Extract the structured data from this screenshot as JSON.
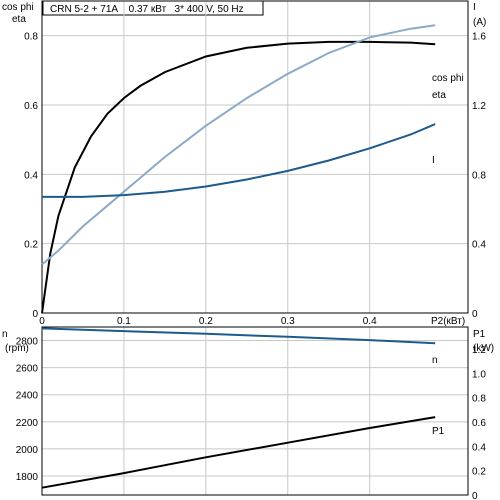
{
  "header": {
    "title": "CRN 5-2 + 71A    0.37 кВт   3* 400 V, 50 Hz"
  },
  "colors": {
    "eta": "#000000",
    "cos_phi": "#8caac8",
    "current": "#1f5a8c",
    "speed": "#1f5a8c",
    "power": "#000000",
    "grid": "#c8c8c8"
  },
  "chart_data": [
    {
      "type": "line",
      "title": "CRN 5-2 + 71A    0.37 кВт   3* 400 V, 50 Hz",
      "xlabel": "P2(кВт)",
      "xlim": [
        0,
        0.52
      ],
      "x_ticks": [
        0,
        0.1,
        0.2,
        0.3,
        0.4
      ],
      "x_tick_labels": [
        "0",
        "0.1",
        "0.2",
        "0.3",
        "0.4"
      ],
      "left_axis": {
        "label_lines": [
          "cos phi",
          "eta"
        ],
        "ylim": [
          0,
          0.9
        ],
        "ticks": [
          0,
          0.2,
          0.4,
          0.6,
          0.8
        ],
        "tick_labels": [
          "0",
          "0.2",
          "0.4",
          "0.6",
          "0.8"
        ]
      },
      "right_axis": {
        "label_lines": [
          "I",
          "(A)"
        ],
        "ylim": [
          0,
          1.8
        ],
        "ticks": [
          0,
          0.4,
          0.8,
          1.2,
          1.6
        ],
        "tick_labels": [
          "0",
          "0.4",
          "0.8",
          "1.2",
          "1.6"
        ]
      },
      "grid": true,
      "series": [
        {
          "name": "eta",
          "axis": "left",
          "x": [
            0,
            0.01,
            0.02,
            0.04,
            0.06,
            0.08,
            0.1,
            0.12,
            0.15,
            0.2,
            0.25,
            0.3,
            0.35,
            0.4,
            0.45,
            0.48
          ],
          "y": [
            0,
            0.17,
            0.28,
            0.42,
            0.51,
            0.575,
            0.62,
            0.655,
            0.695,
            0.74,
            0.765,
            0.777,
            0.782,
            0.782,
            0.78,
            0.775
          ]
        },
        {
          "name": "cos phi",
          "axis": "left",
          "x": [
            0,
            0.02,
            0.05,
            0.1,
            0.15,
            0.2,
            0.25,
            0.3,
            0.35,
            0.4,
            0.45,
            0.48
          ],
          "y": [
            0.14,
            0.18,
            0.25,
            0.35,
            0.45,
            0.54,
            0.62,
            0.69,
            0.75,
            0.795,
            0.82,
            0.83
          ]
        },
        {
          "name": "I",
          "axis": "right",
          "x": [
            0,
            0.05,
            0.1,
            0.15,
            0.2,
            0.25,
            0.3,
            0.35,
            0.4,
            0.45,
            0.48
          ],
          "y": [
            0.67,
            0.67,
            0.68,
            0.7,
            0.73,
            0.77,
            0.82,
            0.88,
            0.95,
            1.03,
            1.09
          ]
        }
      ]
    },
    {
      "type": "line",
      "xlim": [
        0,
        0.52
      ],
      "left_axis": {
        "label_lines": [
          "n",
          "(rpm)"
        ],
        "ylim": [
          1660,
          2900
        ],
        "ticks": [
          1800,
          2000,
          2200,
          2400,
          2600,
          2800
        ],
        "tick_labels": [
          "1800",
          "2000",
          "2200",
          "2400",
          "2600",
          "2800"
        ]
      },
      "right_axis": {
        "label_lines": [
          "P1",
          "(kW)"
        ],
        "ylim": [
          0,
          1.38
        ],
        "ticks": [
          0,
          0.2,
          0.4,
          0.6,
          0.8,
          1.0,
          1.2
        ],
        "tick_labels": [
          "0",
          "0.2",
          "0.4",
          "0.6",
          "0.8",
          "1.0",
          "1.2"
        ]
      },
      "grid": true,
      "series": [
        {
          "name": "n",
          "axis": "left",
          "x": [
            0,
            0.1,
            0.2,
            0.3,
            0.4,
            0.48
          ],
          "y": [
            2890,
            2870,
            2850,
            2828,
            2803,
            2780
          ]
        },
        {
          "name": "P1",
          "axis": "right",
          "x": [
            0,
            0.1,
            0.2,
            0.3,
            0.4,
            0.48
          ],
          "y": [
            0.06,
            0.18,
            0.31,
            0.43,
            0.55,
            0.64
          ]
        }
      ]
    }
  ]
}
